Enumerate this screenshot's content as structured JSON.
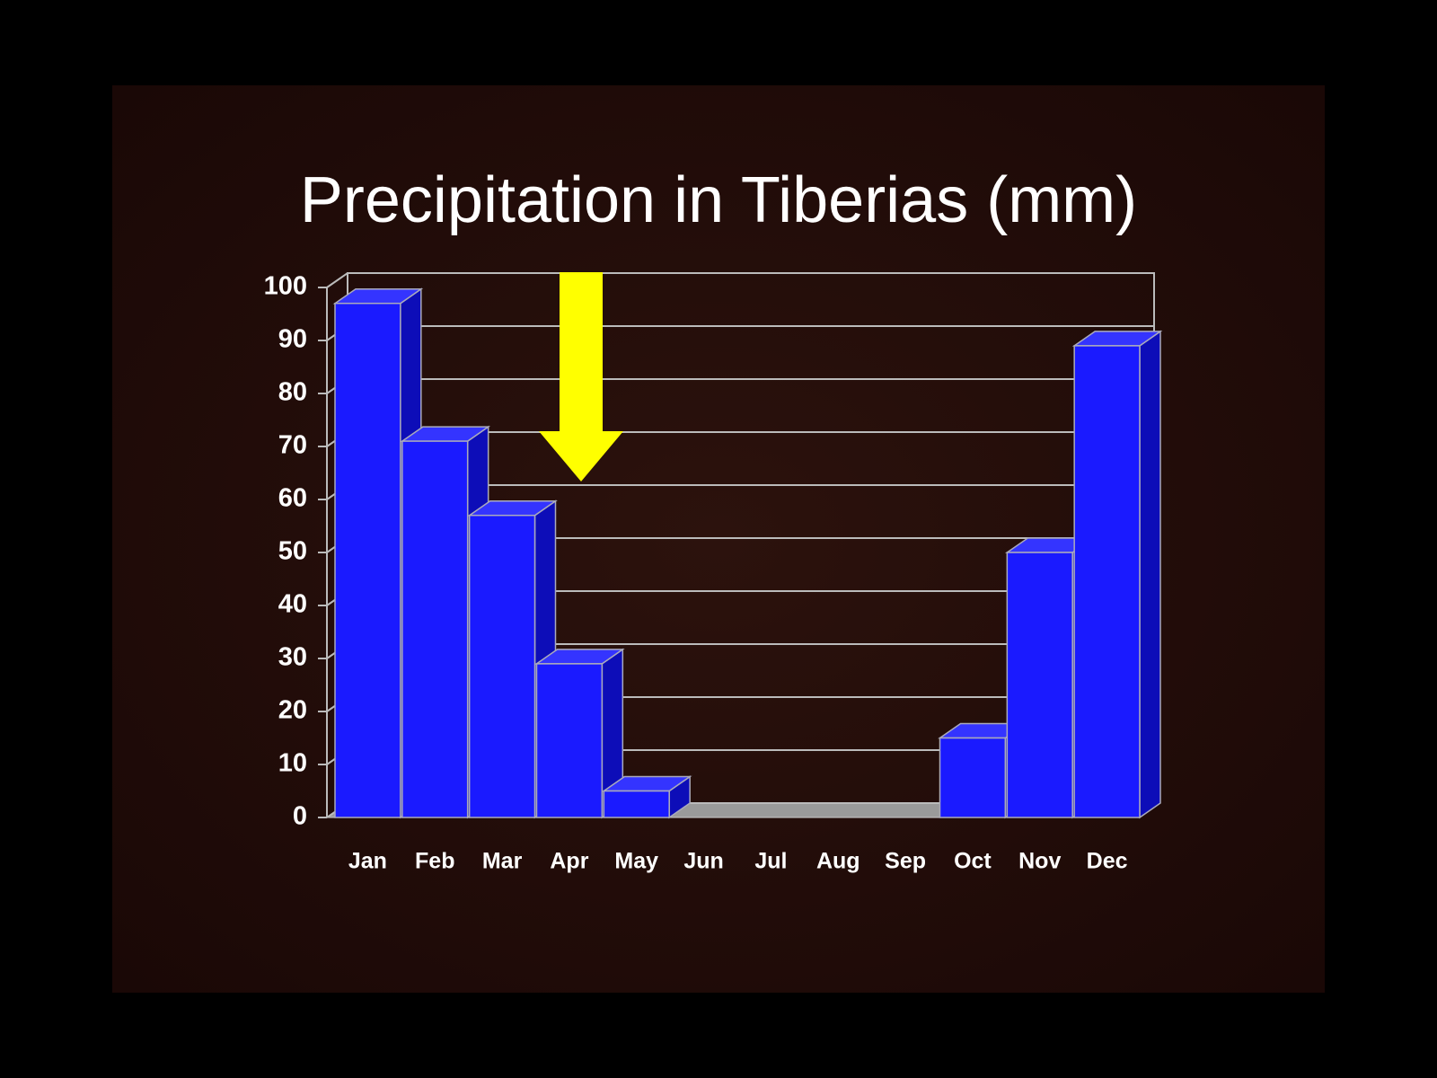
{
  "chart_data": {
    "type": "bar3d",
    "title": "Precipitation in Tiberias (mm)",
    "categories": [
      "Jan",
      "Feb",
      "Mar",
      "Apr",
      "May",
      "Jun",
      "Jul",
      "Aug",
      "Sep",
      "Oct",
      "Nov",
      "Dec"
    ],
    "values": [
      97,
      71,
      57,
      29,
      5,
      0,
      0,
      0,
      0,
      15,
      50,
      89
    ],
    "color": "#1a1aff",
    "ylim": [
      0,
      100
    ],
    "yticks": [
      0,
      10,
      20,
      30,
      40,
      50,
      60,
      70,
      80,
      90,
      100
    ],
    "grid": true
  }
}
